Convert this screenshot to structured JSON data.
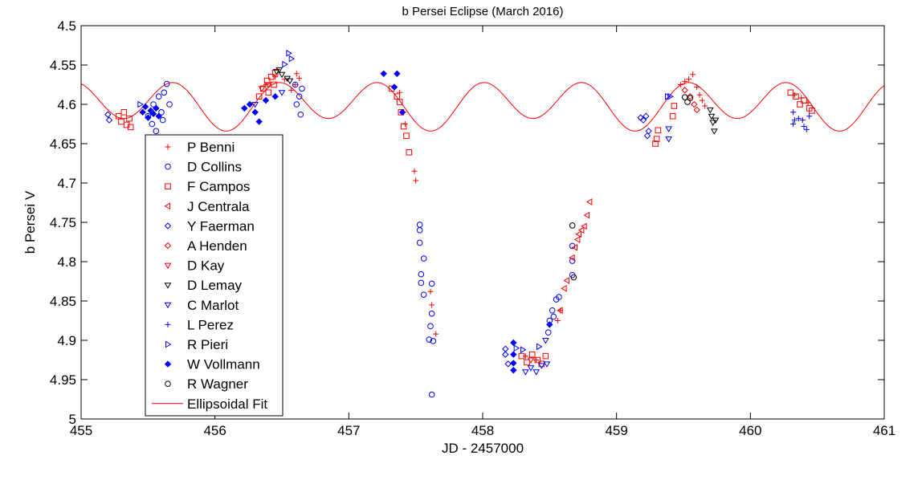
{
  "chart_data": {
    "type": "scatter",
    "title": "b Persei Eclipse (March 2016)",
    "xlabel": "JD - 2457000",
    "ylabel": "b Persei V",
    "xlim": [
      455,
      461
    ],
    "ylim": [
      4.5,
      5
    ],
    "y_reversed": true,
    "xticks": [
      455,
      456,
      457,
      458,
      459,
      460,
      461
    ],
    "xtick_labels": [
      "455",
      "456",
      "457",
      "458",
      "459",
      "460",
      "461"
    ],
    "yticks": [
      4.5,
      4.55,
      4.6,
      4.65,
      4.7,
      4.75,
      4.8,
      4.85,
      4.9,
      4.95,
      5
    ],
    "ytick_labels": [
      "4.5",
      "4.55",
      "4.6",
      "4.65",
      "4.7",
      "4.75",
      "4.8",
      "4.85",
      "4.9",
      "4.95",
      "5"
    ],
    "grid": false,
    "legend_position": "lower-left",
    "fit": {
      "name": "Ellipsoidal Fit",
      "color": "#ff0000",
      "model": "m - a*cos(theta) + b*sin(theta/2), theta = 2*pi*(x - t0)/P",
      "m": 4.5993,
      "a": 0.0267,
      "b": -0.008,
      "t0": 459.52,
      "P": 0.7637
    },
    "series": [
      {
        "name": "P Benni",
        "marker": "plus",
        "color": "#ff0000",
        "points": [
          [
            456.38,
            4.575
          ],
          [
            456.45,
            4.565
          ],
          [
            456.52,
            4.568
          ],
          [
            456.57,
            4.582
          ],
          [
            456.61,
            4.561
          ],
          [
            456.63,
            4.567
          ],
          [
            456.6,
            4.575
          ],
          [
            457.38,
            4.585
          ],
          [
            457.41,
            4.61
          ],
          [
            457.42,
            4.625
          ],
          [
            457.49,
            4.685
          ],
          [
            457.5,
            4.697
          ],
          [
            457.61,
            4.838
          ],
          [
            457.62,
            4.855
          ],
          [
            457.65,
            4.892
          ],
          [
            458.32,
            4.92
          ],
          [
            458.4,
            4.925
          ],
          [
            458.56,
            4.875
          ],
          [
            458.58,
            4.862
          ],
          [
            459.48,
            4.575
          ],
          [
            459.51,
            4.571
          ],
          [
            459.54,
            4.568
          ],
          [
            459.57,
            4.562
          ],
          [
            459.6,
            4.578
          ],
          [
            459.62,
            4.588
          ],
          [
            459.66,
            4.602
          ],
          [
            459.64,
            4.595
          ],
          [
            460.33,
            4.588
          ],
          [
            460.38,
            4.592
          ],
          [
            460.43,
            4.598
          ]
        ]
      },
      {
        "name": "D Collins",
        "marker": "circle",
        "color": "#0000ff",
        "points": [
          [
            455.5,
            4.615
          ],
          [
            455.54,
            4.6
          ],
          [
            455.56,
            4.634
          ],
          [
            455.58,
            4.59
          ],
          [
            455.6,
            4.61
          ],
          [
            455.62,
            4.585
          ],
          [
            455.64,
            4.574
          ],
          [
            455.66,
            4.6
          ],
          [
            455.61,
            4.62
          ],
          [
            455.53,
            4.625
          ],
          [
            456.6,
            4.575
          ],
          [
            456.63,
            4.59
          ],
          [
            456.65,
            4.58
          ],
          [
            456.64,
            4.613
          ],
          [
            456.61,
            4.6
          ],
          [
            457.53,
            4.753
          ],
          [
            457.53,
            4.76
          ],
          [
            457.53,
            4.776
          ],
          [
            457.56,
            4.796
          ],
          [
            457.54,
            4.816
          ],
          [
            457.54,
            4.827
          ],
          [
            457.56,
            4.842
          ],
          [
            457.62,
            4.828
          ],
          [
            457.62,
            4.866
          ],
          [
            457.61,
            4.882
          ],
          [
            457.6,
            4.899
          ],
          [
            457.63,
            4.901
          ],
          [
            457.62,
            4.969
          ],
          [
            458.52,
            4.862
          ],
          [
            458.53,
            4.87
          ],
          [
            458.55,
            4.848
          ],
          [
            458.57,
            4.845
          ],
          [
            458.5,
            4.875
          ],
          [
            458.49,
            4.89
          ],
          [
            458.67,
            4.78
          ],
          [
            458.67,
            4.799
          ],
          [
            458.67,
            4.817
          ]
        ]
      },
      {
        "name": "F Campos",
        "marker": "square",
        "color": "#ff0000",
        "points": [
          [
            455.28,
            4.615
          ],
          [
            455.3,
            4.622
          ],
          [
            455.32,
            4.61
          ],
          [
            455.34,
            4.626
          ],
          [
            455.36,
            4.618
          ],
          [
            455.37,
            4.629
          ],
          [
            456.33,
            4.59
          ],
          [
            456.36,
            4.58
          ],
          [
            456.39,
            4.57
          ],
          [
            456.42,
            4.565
          ],
          [
            456.45,
            4.56
          ],
          [
            456.4,
            4.585
          ],
          [
            456.44,
            4.575
          ],
          [
            457.32,
            4.58
          ],
          [
            457.36,
            4.59
          ],
          [
            457.38,
            4.597
          ],
          [
            457.39,
            4.61
          ],
          [
            457.41,
            4.628
          ],
          [
            457.43,
            4.64
          ],
          [
            457.45,
            4.661
          ],
          [
            458.29,
            4.92
          ],
          [
            458.33,
            4.928
          ],
          [
            458.37,
            4.918
          ],
          [
            458.41,
            4.925
          ],
          [
            458.44,
            4.93
          ],
          [
            458.47,
            4.92
          ],
          [
            459.3,
            4.644
          ],
          [
            459.29,
            4.65
          ],
          [
            459.31,
            4.633
          ],
          [
            459.43,
            4.602
          ],
          [
            459.42,
            4.615
          ],
          [
            460.3,
            4.585
          ],
          [
            460.34,
            4.59
          ],
          [
            460.37,
            4.6
          ],
          [
            460.4,
            4.595
          ],
          [
            460.44,
            4.605
          ],
          [
            460.46,
            4.608
          ]
        ]
      },
      {
        "name": "J Centrala",
        "marker": "triangle-left",
        "color": "#ff0000",
        "points": [
          [
            458.58,
            4.862
          ],
          [
            458.61,
            4.834
          ],
          [
            458.63,
            4.824
          ],
          [
            458.67,
            4.795
          ],
          [
            458.69,
            4.782
          ],
          [
            458.71,
            4.772
          ],
          [
            458.72,
            4.765
          ],
          [
            458.74,
            4.76
          ],
          [
            458.76,
            4.755
          ],
          [
            458.78,
            4.741
          ],
          [
            458.8,
            4.724
          ]
        ]
      },
      {
        "name": "Y Faerman",
        "marker": "diamond",
        "color": "#0000ff",
        "points": [
          [
            455.2,
            4.613
          ],
          [
            455.21,
            4.62
          ],
          [
            458.17,
            4.911
          ],
          [
            458.17,
            4.918
          ],
          [
            458.19,
            4.93
          ],
          [
            459.18,
            4.617
          ],
          [
            459.2,
            4.62
          ],
          [
            459.22,
            4.615
          ],
          [
            459.24,
            4.634
          ],
          [
            459.23,
            4.64
          ]
        ]
      },
      {
        "name": "A Henden",
        "marker": "diamond",
        "color": "#ff0000",
        "points": [
          [
            459.51,
            4.582
          ],
          [
            459.55,
            4.59
          ],
          [
            459.58,
            4.6
          ],
          [
            459.6,
            4.607
          ]
        ]
      },
      {
        "name": "D Kay",
        "marker": "triangle-down",
        "color": "#ff0000",
        "points": [
          [
            456.35,
            4.58
          ],
          [
            456.4,
            4.575
          ],
          [
            458.36,
            4.925
          ]
        ]
      },
      {
        "name": "D Lemay",
        "marker": "triangle-down",
        "color": "#000000",
        "points": [
          [
            456.46,
            4.558
          ],
          [
            456.48,
            4.556
          ],
          [
            456.5,
            4.562
          ],
          [
            456.54,
            4.567
          ],
          [
            456.56,
            4.57
          ],
          [
            459.7,
            4.607
          ],
          [
            459.71,
            4.615
          ],
          [
            459.72,
            4.623
          ],
          [
            459.74,
            4.62
          ],
          [
            459.73,
            4.634
          ]
        ]
      },
      {
        "name": "C Marlot",
        "marker": "triangle-down",
        "color": "#0000ff",
        "points": [
          [
            456.3,
            4.6
          ],
          [
            456.5,
            4.585
          ],
          [
            458.32,
            4.94
          ],
          [
            458.36,
            4.935
          ],
          [
            458.4,
            4.94
          ],
          [
            458.44,
            4.932
          ],
          [
            458.48,
            4.93
          ],
          [
            458.47,
            4.9
          ],
          [
            459.39,
            4.631
          ],
          [
            459.39,
            4.644
          ]
        ]
      },
      {
        "name": "L Perez",
        "marker": "plus",
        "color": "#0000ff",
        "points": [
          [
            460.32,
            4.61
          ],
          [
            460.33,
            4.62
          ],
          [
            460.36,
            4.618
          ],
          [
            460.39,
            4.62
          ],
          [
            460.4,
            4.628
          ],
          [
            460.42,
            4.632
          ],
          [
            460.32,
            4.625
          ],
          [
            460.44,
            4.615
          ]
        ]
      },
      {
        "name": "R Pieri",
        "marker": "triangle-right",
        "color": "#0000ff",
        "points": [
          [
            455.44,
            4.6
          ],
          [
            456.52,
            4.549
          ],
          [
            456.55,
            4.535
          ],
          [
            456.57,
            4.542
          ],
          [
            458.25,
            4.91
          ],
          [
            458.3,
            4.912
          ],
          [
            458.42,
            4.908
          ],
          [
            459.38,
            4.59
          ],
          [
            459.4,
            4.59
          ]
        ]
      },
      {
        "name": "W Vollmann",
        "marker": "filled-diamond",
        "color": "#0000ff",
        "points": [
          [
            455.46,
            4.61
          ],
          [
            455.48,
            4.603
          ],
          [
            455.5,
            4.617
          ],
          [
            455.52,
            4.608
          ],
          [
            455.54,
            4.612
          ],
          [
            455.56,
            4.605
          ],
          [
            455.58,
            4.615
          ],
          [
            456.22,
            4.605
          ],
          [
            456.26,
            4.6
          ],
          [
            456.3,
            4.61
          ],
          [
            456.33,
            4.622
          ],
          [
            456.38,
            4.595
          ],
          [
            456.45,
            4.59
          ],
          [
            457.26,
            4.561
          ],
          [
            457.36,
            4.561
          ],
          [
            457.34,
            4.578
          ],
          [
            457.4,
            4.61
          ],
          [
            458.23,
            4.903
          ],
          [
            458.23,
            4.918
          ],
          [
            458.23,
            4.929
          ],
          [
            458.23,
            4.938
          ],
          [
            458.5,
            4.88
          ]
        ]
      },
      {
        "name": "R Wagner",
        "marker": "circle",
        "color": "#000000",
        "points": [
          [
            459.51,
            4.591
          ],
          [
            459.55,
            4.592
          ],
          [
            459.53,
            4.597
          ],
          [
            458.67,
            4.754
          ],
          [
            458.68,
            4.82
          ]
        ]
      }
    ]
  }
}
